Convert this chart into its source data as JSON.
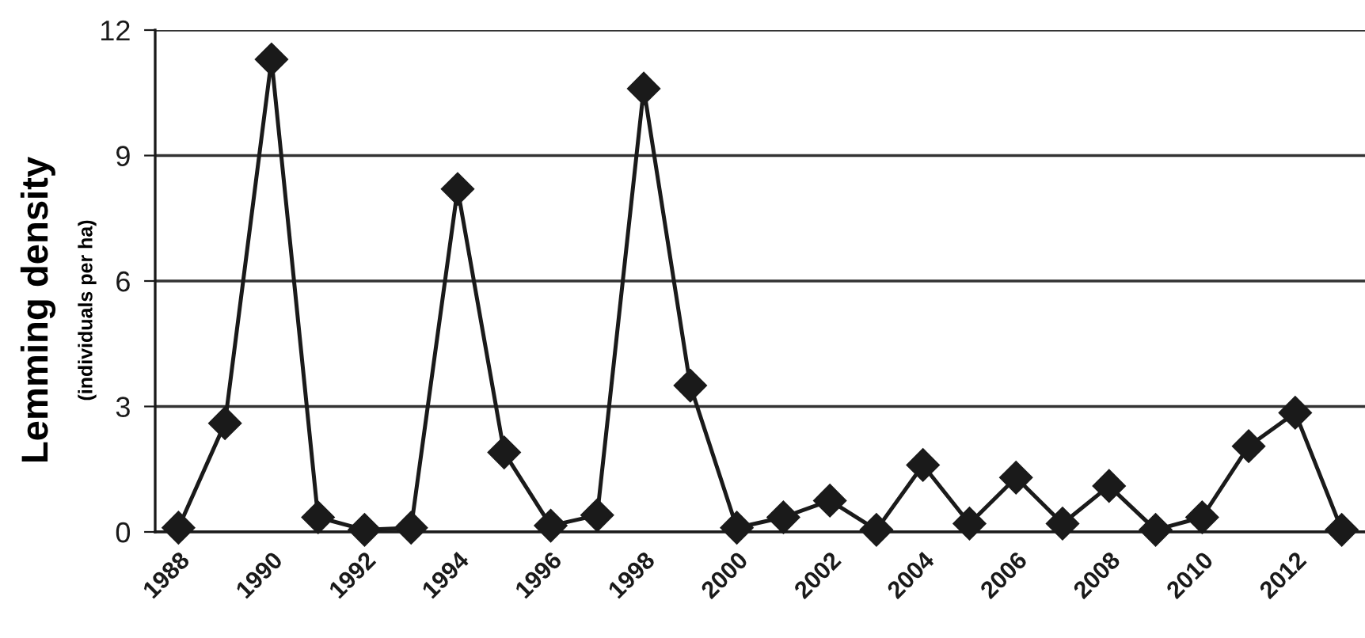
{
  "chart_data": {
    "type": "line",
    "ylabel": "Lemming density\n(individuals per ha)",
    "categories": [
      "1988",
      null,
      "1990",
      null,
      "1992",
      null,
      "1994",
      null,
      "1996",
      null,
      "1998",
      null,
      "2000",
      null,
      "2002",
      null,
      "2004",
      null,
      "2006",
      null,
      "2008",
      null,
      "2010",
      null,
      "2012",
      null
    ],
    "series": [
      {
        "color": "#1a1a1a",
        "values": [
          0.1,
          2.6,
          11.3,
          0.35,
          0.05,
          0.1,
          8.2,
          1.9,
          0.15,
          0.4,
          10.6,
          3.5,
          0.1,
          0.35,
          0.75,
          0.05,
          1.6,
          0.2,
          1.3,
          0.2,
          1.1,
          0.05,
          0.35,
          2.05,
          2.85,
          0.05
        ]
      }
    ],
    "ylim": [
      0,
      12
    ],
    "yticks": [
      0,
      3,
      6,
      9,
      12
    ],
    "grid": "y",
    "marker": "diamond",
    "line_style": "solid"
  }
}
